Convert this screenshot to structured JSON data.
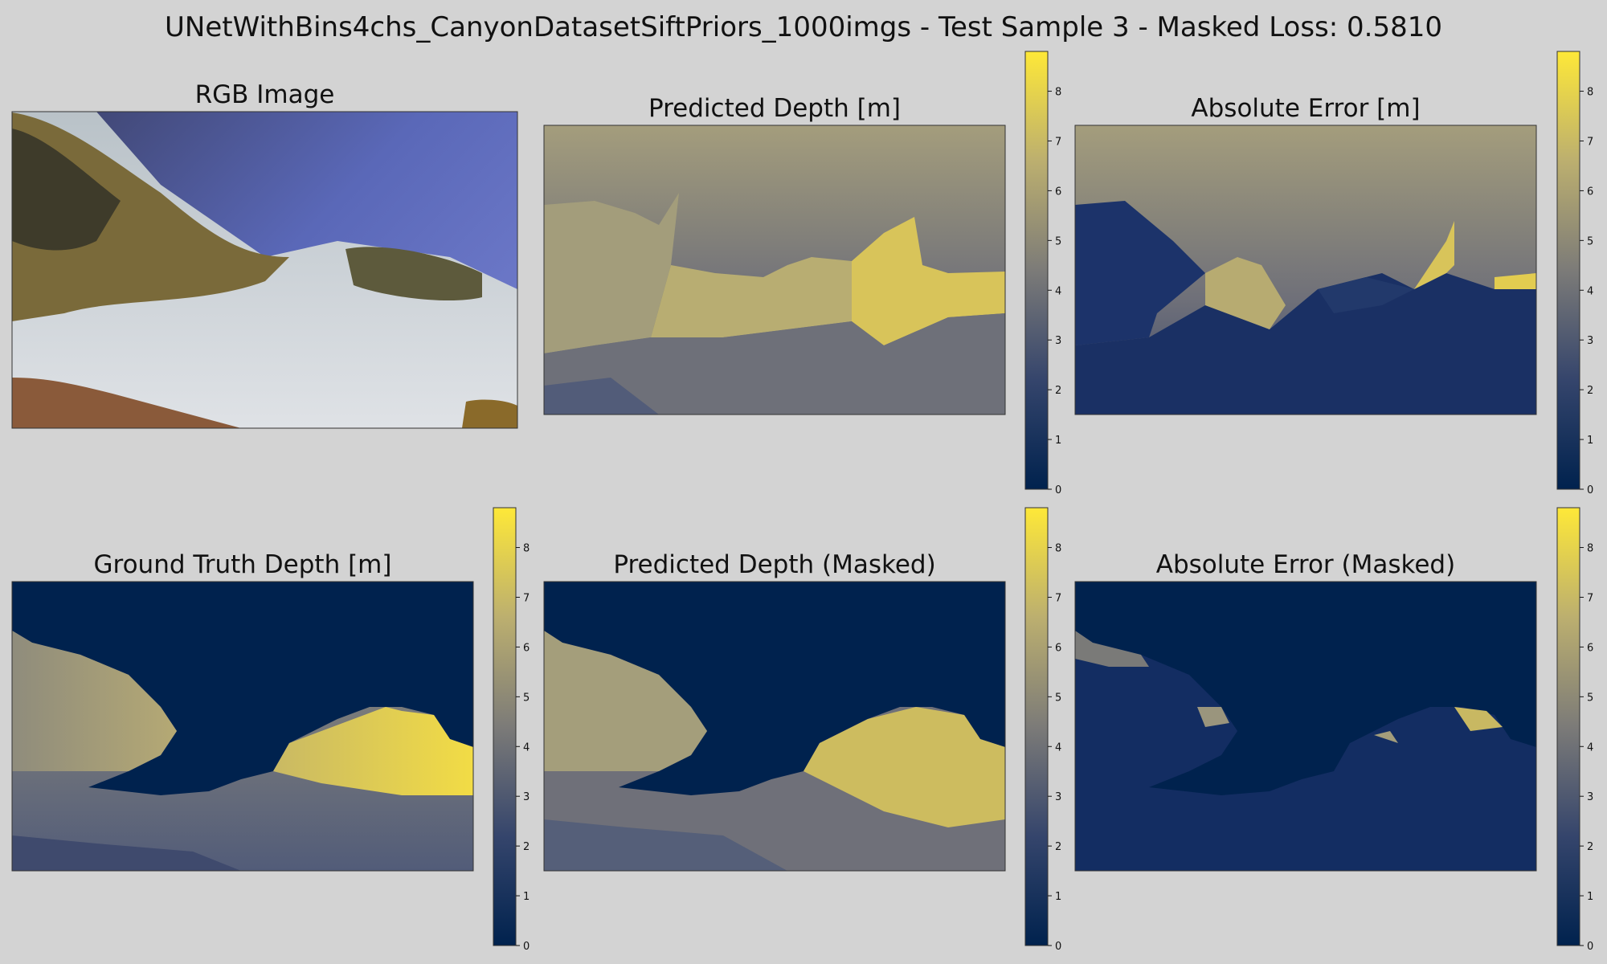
{
  "suptitle": "UNetWithBins4chs_CanyonDatasetSiftPriors_1000imgs - Test Sample 3 - Masked Loss: 0.5810",
  "chart_data": [
    {
      "type": "heatmap",
      "title": "RGB Image",
      "colorbar": false
    },
    {
      "type": "heatmap",
      "title": "Predicted Depth [m]",
      "colormap": "cividis",
      "colorbar_range": [
        0,
        8.8
      ],
      "colorbar_ticks": [
        0,
        1,
        2,
        3,
        4,
        5,
        6,
        7,
        8
      ]
    },
    {
      "type": "heatmap",
      "title": "Absolute Error [m]",
      "colormap": "cividis",
      "colorbar_range": [
        0,
        8.8
      ],
      "colorbar_ticks": [
        0,
        1,
        2,
        3,
        4,
        5,
        6,
        7,
        8
      ]
    },
    {
      "type": "heatmap",
      "title": "Ground Truth Depth [m]",
      "colormap": "cividis",
      "colorbar_range": [
        0,
        8.8
      ],
      "colorbar_ticks": [
        0,
        1,
        2,
        3,
        4,
        5,
        6,
        7,
        8
      ]
    },
    {
      "type": "heatmap",
      "title": "Predicted Depth (Masked)",
      "colormap": "cividis",
      "colorbar_range": [
        0,
        8.8
      ],
      "colorbar_ticks": [
        0,
        1,
        2,
        3,
        4,
        5,
        6,
        7,
        8
      ]
    },
    {
      "type": "heatmap",
      "title": "Absolute Error (Masked)",
      "colormap": "cividis",
      "colorbar_range": [
        0,
        8.8
      ],
      "colorbar_ticks": [
        0,
        1,
        2,
        3,
        4,
        5,
        6,
        7,
        8
      ]
    }
  ],
  "colors": {
    "background": "#d3d3d3",
    "cividis_low": "#00224e",
    "cividis_mid": "#7c7b78",
    "cividis_high": "#fee838"
  }
}
